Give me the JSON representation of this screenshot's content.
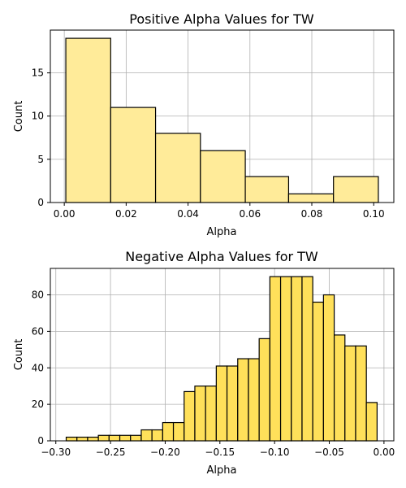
{
  "chart_data": [
    {
      "type": "bar",
      "histogram": true,
      "title": "Positive Alpha Values for TW",
      "xlabel": "Alpha",
      "ylabel": "Count",
      "bin_edges": [
        0.0005,
        0.015,
        0.0295,
        0.044,
        0.0585,
        0.0725,
        0.087,
        0.1015
      ],
      "values": [
        19,
        11,
        8,
        6,
        3,
        1,
        3
      ],
      "xlim": [
        -0.0045,
        0.1065
      ],
      "ylim": [
        0,
        19.95
      ],
      "xticks": [
        0.0,
        0.02,
        0.04,
        0.06,
        0.08,
        0.1
      ],
      "xtick_labels": [
        "0.00",
        "0.02",
        "0.04",
        "0.06",
        "0.08",
        "0.10"
      ],
      "yticks": [
        0,
        5,
        10,
        15
      ],
      "ytick_labels": [
        "0",
        "5",
        "10",
        "15"
      ],
      "grid": true,
      "colors": {
        "fill": "#ffeb99",
        "edge": "#000000",
        "grid": "#b0b0b0"
      }
    },
    {
      "type": "bar",
      "histogram": true,
      "title": "Negative Alpha Values for TW",
      "xlabel": "Alpha",
      "ylabel": "Count",
      "bin_edges": [
        -0.2905,
        -0.2807,
        -0.2709,
        -0.2611,
        -0.2513,
        -0.2415,
        -0.2317,
        -0.2219,
        -0.2121,
        -0.2023,
        -0.1925,
        -0.1827,
        -0.1729,
        -0.1631,
        -0.1533,
        -0.1435,
        -0.1337,
        -0.1239,
        -0.1141,
        -0.1043,
        -0.0945,
        -0.0847,
        -0.0749,
        -0.0651,
        -0.0553,
        -0.0455,
        -0.0357,
        -0.0259,
        -0.0161,
        -0.0063
      ],
      "values": [
        2,
        2,
        2,
        3,
        3,
        3,
        3,
        6,
        6,
        10,
        10,
        27,
        30,
        30,
        41,
        41,
        45,
        45,
        56,
        90,
        90,
        90,
        90,
        76,
        80,
        58,
        52,
        52,
        21
      ],
      "xlim": [
        -0.305,
        0.009
      ],
      "ylim": [
        0,
        94.5
      ],
      "xticks": [
        -0.3,
        -0.25,
        -0.2,
        -0.15,
        -0.1,
        -0.05,
        0.0
      ],
      "xtick_labels": [
        "−0.30",
        "−0.25",
        "−0.20",
        "−0.15",
        "−0.10",
        "−0.05",
        "0.00"
      ],
      "yticks": [
        0,
        20,
        40,
        60,
        80
      ],
      "ytick_labels": [
        "0",
        "20",
        "40",
        "60",
        "80"
      ],
      "grid": true,
      "colors": {
        "fill": "#ffe05a",
        "edge": "#000000",
        "grid": "#b0b0b0"
      }
    }
  ]
}
